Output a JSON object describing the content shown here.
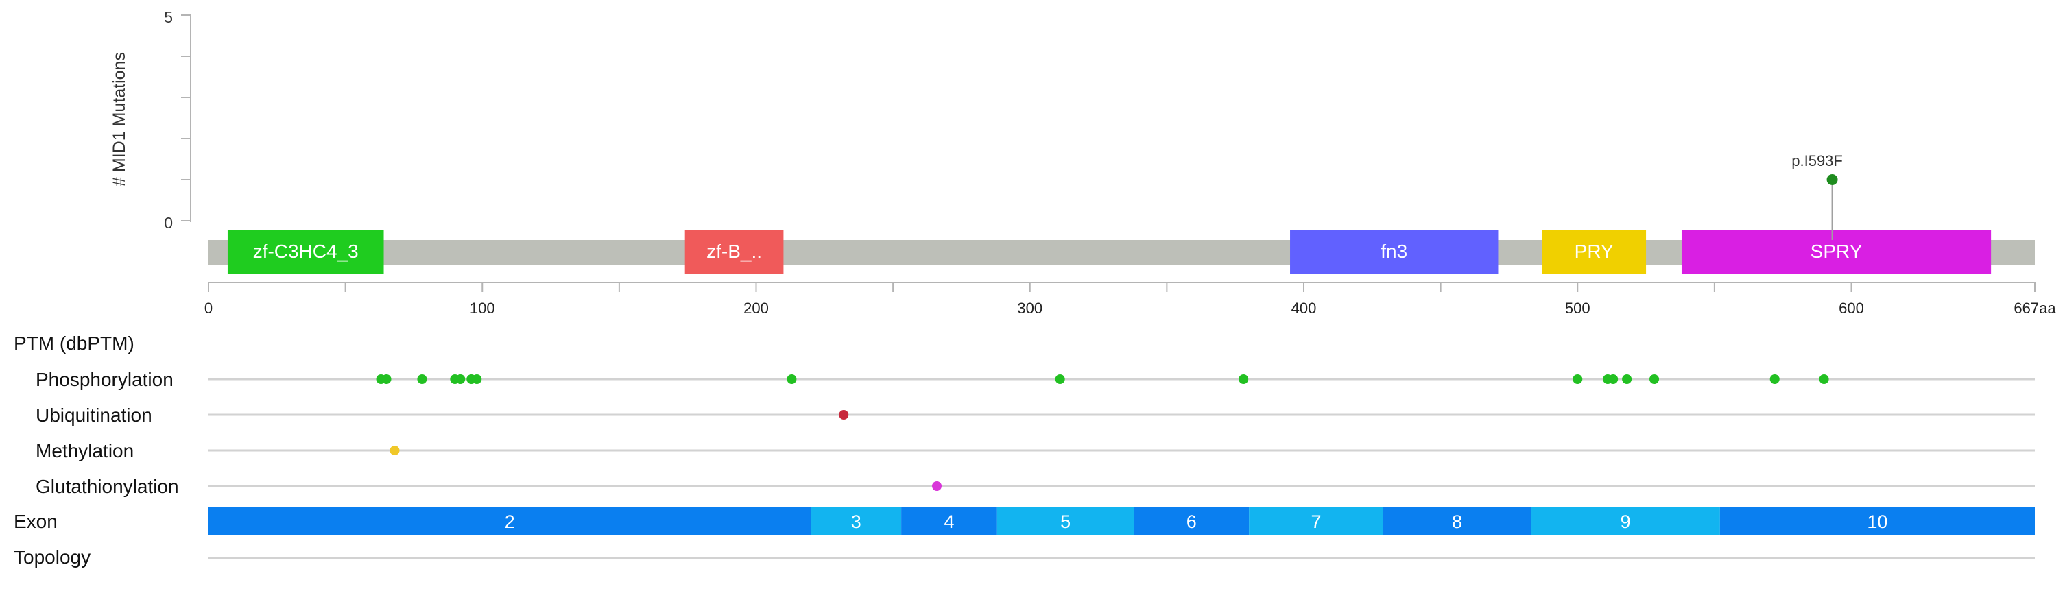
{
  "chart_data": {
    "type": "lollipop",
    "ylabel": "# MID1 Mutations",
    "y_ticks": [
      "5",
      "0"
    ],
    "ylim": [
      0,
      5
    ],
    "protein_length": 667,
    "x_ticks": [
      0,
      100,
      200,
      300,
      400,
      500,
      600
    ],
    "x_end_label": "667aa",
    "mutations": [
      {
        "label": "p.I593F",
        "position": 593,
        "count": 1
      }
    ],
    "domains": [
      {
        "name": "zf-C3HC4_3",
        "start": 7,
        "end": 64,
        "color": "#1fcc1f"
      },
      {
        "name": "zf-B_..",
        "start": 174,
        "end": 210,
        "color": "#f05a5a"
      },
      {
        "name": "fn3",
        "start": 395,
        "end": 471,
        "color": "#6161ff"
      },
      {
        "name": "PRY",
        "start": 487,
        "end": 525,
        "color": "#f0d000"
      },
      {
        "name": "SPRY",
        "start": 538,
        "end": 651,
        "color": "#d91fe3"
      }
    ],
    "ptm": {
      "title": "PTM (dbPTM)",
      "tracks": [
        {
          "name": "Phosphorylation",
          "color": "#22c022",
          "positions": [
            63,
            65,
            78,
            90,
            92,
            96,
            98,
            213,
            311,
            378,
            500,
            511,
            513,
            518,
            528,
            572,
            590
          ]
        },
        {
          "name": "Ubiquitination",
          "color": "#c8283c",
          "positions": [
            232
          ]
        },
        {
          "name": "Methylation",
          "color": "#f0c828",
          "positions": [
            68
          ]
        },
        {
          "name": "Glutathionylation",
          "color": "#d936d9",
          "positions": [
            266
          ]
        }
      ]
    },
    "exons": {
      "title": "Exon",
      "items": [
        {
          "label": "2",
          "start": 0,
          "end": 220,
          "color": "#0a7ff0"
        },
        {
          "label": "3",
          "start": 220,
          "end": 253,
          "color": "#12b4f0"
        },
        {
          "label": "4",
          "start": 253,
          "end": 288,
          "color": "#0a7ff0"
        },
        {
          "label": "5",
          "start": 288,
          "end": 338,
          "color": "#12b4f0"
        },
        {
          "label": "6",
          "start": 338,
          "end": 380,
          "color": "#0a7ff0"
        },
        {
          "label": "7",
          "start": 380,
          "end": 429,
          "color": "#12b4f0"
        },
        {
          "label": "8",
          "start": 429,
          "end": 483,
          "color": "#0a7ff0"
        },
        {
          "label": "9",
          "start": 483,
          "end": 552,
          "color": "#12b4f0"
        },
        {
          "label": "10",
          "start": 552,
          "end": 667,
          "color": "#0a7ff0"
        }
      ]
    },
    "topology": {
      "title": "Topology"
    },
    "colors": {
      "backbone": "#bdbfb8",
      "axis": "#b4b4b4",
      "track_line": "#d2d2d2",
      "lollipop_head": "#1e8c1e",
      "lollipop_stem": "#a0a0a0"
    }
  }
}
